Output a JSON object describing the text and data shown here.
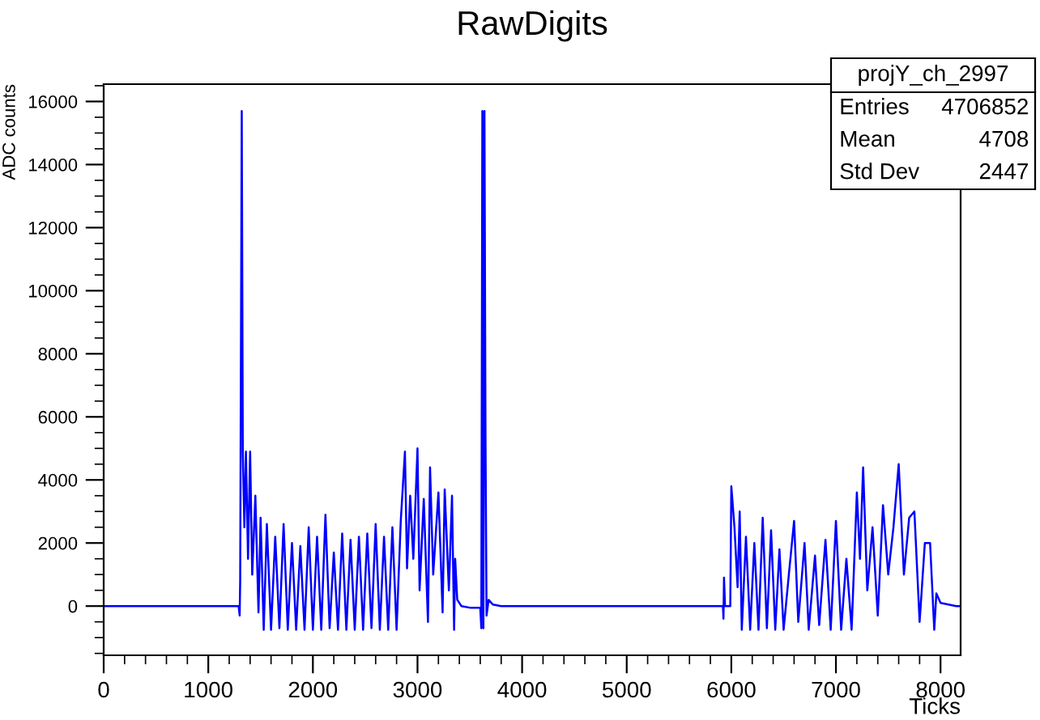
{
  "chart_data": {
    "type": "line",
    "title": "RawDigits",
    "xlabel": "Ticks",
    "ylabel": "ADC counts",
    "annotations": [
      "projY_ch_2997",
      "Entries",
      "4706852",
      "Mean",
      "4708",
      "Std Dev",
      "2447"
    ],
    "xlim": [
      0,
      8192
    ],
    "ylim": [
      -1560,
      16550
    ],
    "xticks": [
      0,
      1000,
      2000,
      3000,
      4000,
      5000,
      6000,
      7000,
      8000
    ],
    "yticks": [
      0,
      2000,
      4000,
      6000,
      8000,
      10000,
      12000,
      14000,
      16000
    ],
    "grid": false,
    "marker": "none",
    "line_style": "solid",
    "series": [
      {
        "color": "#0000ff",
        "x": [
          0,
          1290,
          1300,
          1305,
          1320,
          1330,
          1345,
          1360,
          1380,
          1400,
          1420,
          1450,
          1480,
          1500,
          1530,
          1560,
          1600,
          1640,
          1680,
          1720,
          1760,
          1800,
          1840,
          1880,
          1920,
          1960,
          2000,
          2040,
          2080,
          2120,
          2160,
          2200,
          2240,
          2280,
          2320,
          2360,
          2400,
          2440,
          2480,
          2520,
          2560,
          2600,
          2640,
          2680,
          2720,
          2760,
          2800,
          2840,
          2880,
          2900,
          2930,
          2960,
          3000,
          3020,
          3060,
          3100,
          3120,
          3150,
          3200,
          3240,
          3260,
          3300,
          3330,
          3350,
          3360,
          3380,
          3420,
          3500,
          3600,
          3610,
          3620,
          3630,
          3640,
          3650,
          3660,
          3680,
          3720,
          3800,
          5920,
          5925,
          5930,
          5940,
          5990,
          6000,
          6030,
          6060,
          6080,
          6100,
          6140,
          6180,
          6220,
          6260,
          6300,
          6340,
          6380,
          6420,
          6460,
          6500,
          6550,
          6600,
          6640,
          6700,
          6740,
          6800,
          6840,
          6900,
          6950,
          7000,
          7050,
          7100,
          7150,
          7200,
          7230,
          7260,
          7300,
          7350,
          7400,
          7450,
          7500,
          7550,
          7600,
          7650,
          7700,
          7750,
          7800,
          7850,
          7900,
          7940,
          7960,
          8000,
          8150,
          8192
        ],
        "values": [
          0,
          0,
          -300,
          800,
          15700,
          4900,
          2500,
          4900,
          1500,
          4900,
          1000,
          3500,
          -200,
          2800,
          -750,
          2600,
          -750,
          2200,
          -700,
          2600,
          -750,
          2000,
          -750,
          1900,
          -750,
          2500,
          -750,
          2200,
          -750,
          2900,
          -700,
          1700,
          -750,
          2300,
          -750,
          2100,
          -750,
          2200,
          -750,
          2300,
          -700,
          2600,
          -750,
          2200,
          -750,
          2500,
          -750,
          2700,
          4900,
          1200,
          3500,
          1500,
          5000,
          500,
          3400,
          -500,
          4400,
          1000,
          3600,
          -200,
          3700,
          500,
          3500,
          -750,
          1500,
          200,
          0,
          -50,
          -50,
          -700,
          15700,
          -700,
          15700,
          5400,
          -300,
          200,
          50,
          0,
          0,
          -400,
          900,
          0,
          0,
          3800,
          2500,
          600,
          3000,
          -750,
          2200,
          -750,
          2000,
          -750,
          2800,
          -700,
          2400,
          -750,
          1800,
          -750,
          1000,
          2700,
          -500,
          2000,
          -750,
          1600,
          -600,
          2100,
          -750,
          2700,
          -750,
          1500,
          -750,
          3600,
          1500,
          4400,
          500,
          2500,
          -300,
          3200,
          1000,
          2500,
          4500,
          1000,
          2800,
          3000,
          -500,
          2000,
          2000,
          -750,
          400,
          100,
          0,
          0
        ]
      }
    ]
  }
}
